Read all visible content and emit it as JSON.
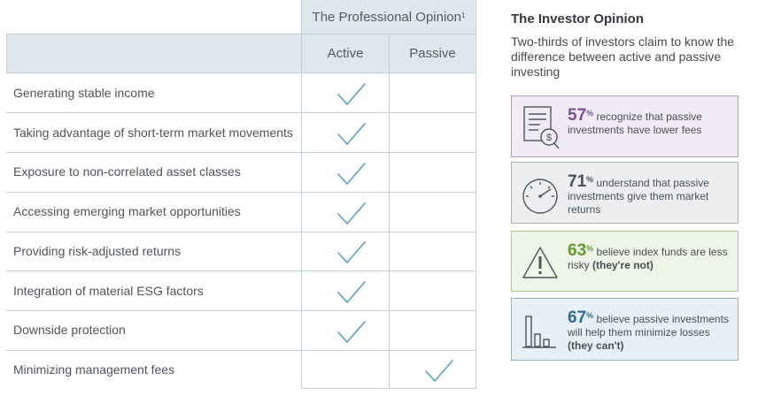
{
  "table": {
    "professional_header": "The Professional Opinion",
    "professional_footnote": "1",
    "col_active": "Active",
    "col_passive": "Passive",
    "rows": [
      {
        "label": "Generating stable income",
        "active": true,
        "passive": false
      },
      {
        "label": "Taking advantage of short-term market movements",
        "active": true,
        "passive": false
      },
      {
        "label": "Exposure to non-correlated asset classes",
        "active": true,
        "passive": false
      },
      {
        "label": "Accessing emerging market opportunities",
        "active": true,
        "passive": false
      },
      {
        "label": "Providing risk-adjusted returns",
        "active": true,
        "passive": false
      },
      {
        "label": "Integration of material ESG factors",
        "active": true,
        "passive": false
      },
      {
        "label": "Downside protection",
        "active": true,
        "passive": false
      },
      {
        "label": "Minimizing management fees",
        "active": false,
        "passive": true
      }
    ]
  },
  "investor": {
    "title": "The Investor Opinion",
    "subtitle": "Two-thirds of investors claim to know the difference between active and passive investing",
    "cards": [
      {
        "icon": "fee-document-icon",
        "pct": "57",
        "pct_sign": "%",
        "text": "recognize that passive investments have lower fees",
        "emphasis": "",
        "color": "#7a4f95",
        "bg": "#f1ebf5",
        "border": "#b69bc8"
      },
      {
        "icon": "gauge-icon",
        "pct": "71",
        "pct_sign": "%",
        "text": "understand that passive investments give them market returns",
        "emphasis": "",
        "color": "#4a5056",
        "bg": "#eceef0",
        "border": "#a9b0b6"
      },
      {
        "icon": "warning-triangle-icon",
        "pct": "63",
        "pct_sign": "%",
        "text": "believe index funds are less risky",
        "emphasis": "(they're not)",
        "color": "#5f9930",
        "bg": "#eef5e8",
        "border": "#a9cc8a"
      },
      {
        "icon": "bar-chart-icon",
        "pct": "67",
        "pct_sign": "%",
        "text": "believe passive investments will help them minimize losses",
        "emphasis": "(they can't)",
        "color": "#2d6a9a",
        "bg": "#e8f0f7",
        "border": "#8fb5d3"
      }
    ]
  }
}
